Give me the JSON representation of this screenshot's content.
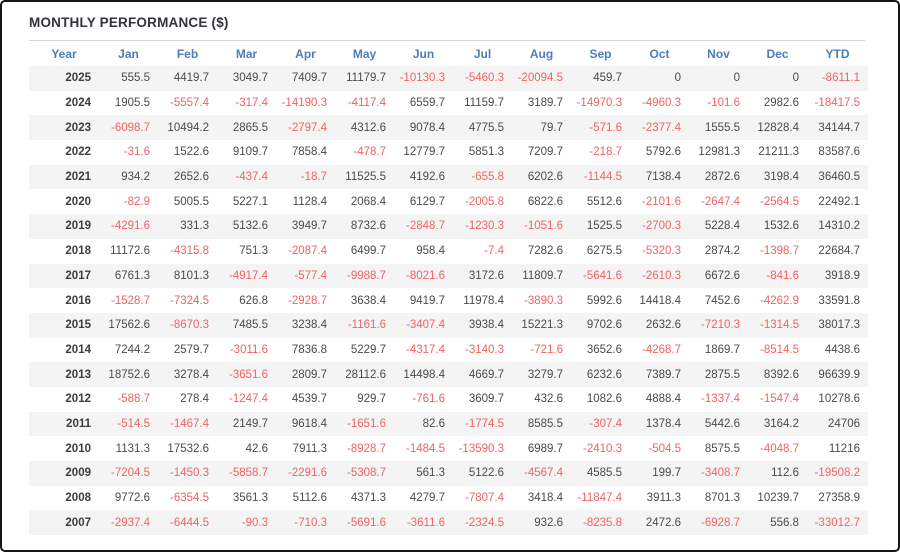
{
  "title": "MONTHLY PERFORMANCE ($)",
  "colors": {
    "title_text": "#33333c",
    "header_text": "#4a7ebc",
    "value_text": "#4a4a4a",
    "year_text": "#3d3d3d",
    "negative_value": "#ef6363",
    "row_stripe": "#f4f4f4",
    "divider": "#d8d8d8",
    "outer_border": "#151515"
  },
  "table": {
    "columns": [
      "Year",
      "Jan",
      "Feb",
      "Mar",
      "Apr",
      "May",
      "Jun",
      "Jul",
      "Aug",
      "Sep",
      "Oct",
      "Nov",
      "Dec",
      "YTD"
    ],
    "rows": [
      {
        "year": "2025",
        "values": [
          555.5,
          4419.7,
          3049.7,
          7409.7,
          11179.7,
          -10130.3,
          -5460.3,
          -20094.5,
          459.7,
          0,
          0,
          0,
          -8611.1
        ]
      },
      {
        "year": "2024",
        "values": [
          1905.5,
          -5557.4,
          -317.4,
          -14190.3,
          -4117.4,
          6559.7,
          11159.7,
          3189.7,
          -14970.3,
          -4960.3,
          -101.6,
          2982.6,
          -18417.5
        ]
      },
      {
        "year": "2023",
        "values": [
          -6098.7,
          10494.2,
          2865.5,
          -2797.4,
          4312.6,
          9078.4,
          4775.5,
          79.7,
          -571.6,
          -2377.4,
          1555.5,
          12828.4,
          34144.7
        ]
      },
      {
        "year": "2022",
        "values": [
          -31.6,
          1522.6,
          9109.7,
          7858.4,
          -478.7,
          12779.7,
          5851.3,
          7209.7,
          -218.7,
          5792.6,
          12981.3,
          21211.3,
          83587.6
        ]
      },
      {
        "year": "2021",
        "values": [
          934.2,
          2652.6,
          -437.4,
          -18.7,
          11525.5,
          4192.6,
          -655.8,
          6202.6,
          -1144.5,
          7138.4,
          2872.6,
          3198.4,
          36460.5
        ]
      },
      {
        "year": "2020",
        "values": [
          -82.9,
          5005.5,
          5227.1,
          1128.4,
          2068.4,
          6129.7,
          -2005.8,
          6822.6,
          5512.6,
          -2101.6,
          -2647.4,
          -2564.5,
          22492.1
        ]
      },
      {
        "year": "2019",
        "values": [
          -4291.6,
          331.3,
          5132.6,
          3949.7,
          8732.6,
          -2848.7,
          -1230.3,
          -1051.6,
          1525.5,
          -2700.3,
          5228.4,
          1532.6,
          14310.2
        ]
      },
      {
        "year": "2018",
        "values": [
          11172.6,
          -4315.8,
          751.3,
          -2087.4,
          6499.7,
          958.4,
          -7.4,
          7282.6,
          6275.5,
          -5320.3,
          2874.2,
          -1398.7,
          22684.7
        ]
      },
      {
        "year": "2017",
        "values": [
          6761.3,
          8101.3,
          -4917.4,
          -577.4,
          -9988.7,
          -8021.6,
          3172.6,
          11809.7,
          -5641.6,
          -2610.3,
          6672.6,
          -841.6,
          3918.9
        ]
      },
      {
        "year": "2016",
        "values": [
          -1528.7,
          -7324.5,
          626.8,
          -2928.7,
          3638.4,
          9419.7,
          11978.4,
          -3890.3,
          5992.6,
          14418.4,
          7452.6,
          -4262.9,
          33591.8
        ]
      },
      {
        "year": "2015",
        "values": [
          17562.6,
          -8670.3,
          7485.5,
          3238.4,
          -1161.6,
          -3407.4,
          3938.4,
          15221.3,
          9702.6,
          2632.6,
          -7210.3,
          -1314.5,
          38017.3
        ]
      },
      {
        "year": "2014",
        "values": [
          7244.2,
          2579.7,
          -3011.6,
          7836.8,
          5229.7,
          -4317.4,
          -3140.3,
          -721.6,
          3652.6,
          -4268.7,
          1869.7,
          -8514.5,
          4438.6
        ]
      },
      {
        "year": "2013",
        "values": [
          18752.6,
          3278.4,
          -3651.6,
          2809.7,
          28112.6,
          14498.4,
          4669.7,
          3279.7,
          6232.6,
          7389.7,
          2875.5,
          8392.6,
          96639.9
        ]
      },
      {
        "year": "2012",
        "values": [
          -588.7,
          278.4,
          -1247.4,
          4539.7,
          929.7,
          -761.6,
          3609.7,
          432.6,
          1082.6,
          4888.4,
          -1337.4,
          -1547.4,
          10278.6
        ]
      },
      {
        "year": "2011",
        "values": [
          -514.5,
          -1467.4,
          2149.7,
          9618.4,
          -1651.6,
          82.6,
          -1774.5,
          8585.5,
          -307.4,
          1378.4,
          5442.6,
          3164.2,
          24706
        ]
      },
      {
        "year": "2010",
        "values": [
          1131.3,
          17532.6,
          42.6,
          7911.3,
          -8928.7,
          -1484.5,
          -13590.3,
          6989.7,
          -2410.3,
          -504.5,
          8575.5,
          -4048.7,
          11216
        ]
      },
      {
        "year": "2009",
        "values": [
          -7204.5,
          -1450.3,
          -5858.7,
          -2291.6,
          -5308.7,
          561.3,
          5122.6,
          -4567.4,
          4585.5,
          199.7,
          -3408.7,
          112.6,
          -19508.2
        ]
      },
      {
        "year": "2008",
        "values": [
          9772.6,
          -6354.5,
          3561.3,
          5112.6,
          4371.3,
          4279.7,
          -7807.4,
          3418.4,
          -11847.4,
          3911.3,
          8701.3,
          10239.7,
          27358.9
        ]
      },
      {
        "year": "2007",
        "values": [
          -2937.4,
          -6444.5,
          -90.3,
          -710.3,
          -5691.6,
          -3611.6,
          -2324.5,
          932.6,
          -8235.8,
          2472.6,
          -6928.7,
          556.8,
          -33012.7
        ]
      }
    ]
  }
}
